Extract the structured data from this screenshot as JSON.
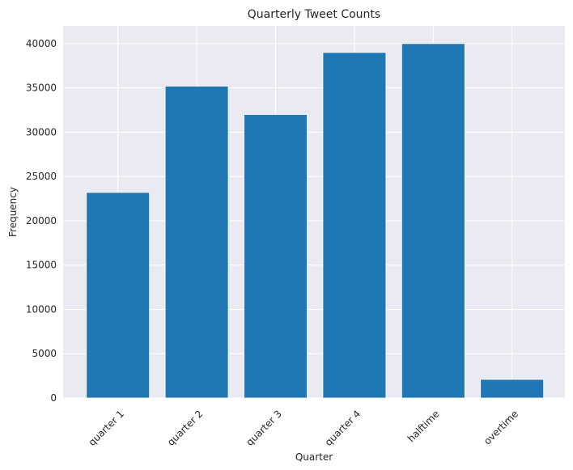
{
  "chart_data": {
    "type": "bar",
    "title": "Quarterly Tweet Counts",
    "xlabel": "Quarter",
    "ylabel": "Frequency",
    "categories": [
      "quarter 1",
      "quarter 2",
      "quarter 3",
      "quarter 4",
      "halftime",
      "overtime"
    ],
    "values": [
      23200,
      35200,
      32000,
      39000,
      40000,
      2100
    ],
    "ylim": [
      0,
      42000
    ],
    "yticks": [
      0,
      5000,
      10000,
      15000,
      20000,
      25000,
      30000,
      35000,
      40000
    ],
    "grid": true,
    "colors": {
      "bar": "#1f77b4",
      "plot_background": "#eaeaf2",
      "grid": "#ffffff",
      "text": "#262626"
    }
  }
}
